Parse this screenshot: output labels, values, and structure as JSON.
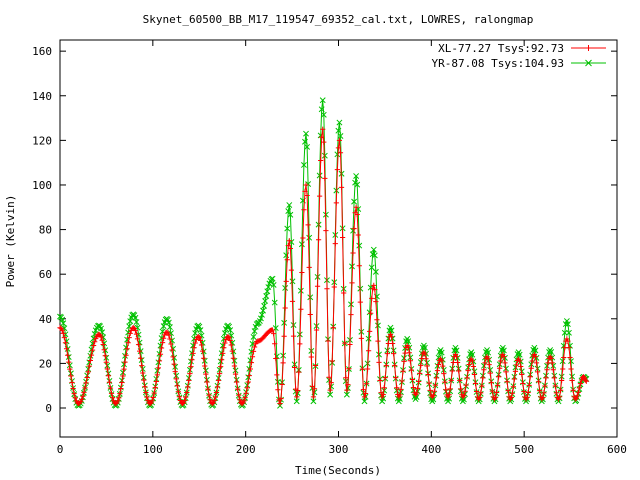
{
  "chart_data": {
    "type": "line",
    "title": "Skynet_60500_BB_M17_119547_69352_cal.txt, LOWRES, ralongmap",
    "xlabel": "Time(Seconds)",
    "ylabel": "Power (Kelvin)",
    "xlim": [
      0,
      600
    ],
    "ylim": [
      -13,
      165
    ],
    "xticks": [
      0,
      100,
      200,
      300,
      400,
      500,
      600
    ],
    "yticks": [
      0,
      20,
      40,
      60,
      80,
      100,
      120,
      140,
      160
    ],
    "grid": false,
    "legend_position": "top-right",
    "x_range": [
      0,
      567
    ],
    "series": [
      {
        "name": "XL-77.27 Tsys:92.73",
        "color": "#ff0000",
        "marker": "plus",
        "peaks": [
          {
            "t": 0,
            "v": 36
          },
          {
            "t": 20,
            "v": 2
          },
          {
            "t": 42,
            "v": 33
          },
          {
            "t": 60,
            "v": 2
          },
          {
            "t": 79,
            "v": 36
          },
          {
            "t": 97,
            "v": 2
          },
          {
            "t": 115,
            "v": 34
          },
          {
            "t": 132,
            "v": 2
          },
          {
            "t": 149,
            "v": 32
          },
          {
            "t": 164,
            "v": 2
          },
          {
            "t": 181,
            "v": 32
          },
          {
            "t": 196,
            "v": 2
          },
          {
            "t": 213,
            "v": 30
          },
          {
            "t": 229,
            "v": 35
          },
          {
            "t": 237,
            "v": 2
          },
          {
            "t": 247,
            "v": 75
          },
          {
            "t": 255,
            "v": 5
          },
          {
            "t": 265,
            "v": 100
          },
          {
            "t": 273,
            "v": 5
          },
          {
            "t": 283,
            "v": 125
          },
          {
            "t": 291,
            "v": 8
          },
          {
            "t": 301,
            "v": 120
          },
          {
            "t": 309,
            "v": 8
          },
          {
            "t": 319,
            "v": 90
          },
          {
            "t": 328,
            "v": 5
          },
          {
            "t": 338,
            "v": 55
          },
          {
            "t": 347,
            "v": 5
          },
          {
            "t": 356,
            "v": 33
          },
          {
            "t": 365,
            "v": 5
          },
          {
            "t": 374,
            "v": 28
          },
          {
            "t": 383,
            "v": 6
          },
          {
            "t": 392,
            "v": 25
          },
          {
            "t": 401,
            "v": 5
          },
          {
            "t": 410,
            "v": 22
          },
          {
            "t": 418,
            "v": 5
          },
          {
            "t": 426,
            "v": 24
          },
          {
            "t": 434,
            "v": 5
          },
          {
            "t": 443,
            "v": 22
          },
          {
            "t": 451,
            "v": 4
          },
          {
            "t": 460,
            "v": 23
          },
          {
            "t": 468,
            "v": 4
          },
          {
            "t": 477,
            "v": 24
          },
          {
            "t": 485,
            "v": 4
          },
          {
            "t": 494,
            "v": 22
          },
          {
            "t": 502,
            "v": 4
          },
          {
            "t": 511,
            "v": 24
          },
          {
            "t": 519,
            "v": 4
          },
          {
            "t": 528,
            "v": 23
          },
          {
            "t": 537,
            "v": 4
          },
          {
            "t": 546,
            "v": 31
          },
          {
            "t": 555,
            "v": 4
          },
          {
            "t": 564,
            "v": 14
          },
          {
            "t": 567,
            "v": 12
          }
        ]
      },
      {
        "name": "YR-87.08 Tsys:104.93",
        "color": "#00c000",
        "marker": "cross",
        "peaks": [
          {
            "t": 0,
            "v": 41
          },
          {
            "t": 20,
            "v": 1
          },
          {
            "t": 42,
            "v": 37
          },
          {
            "t": 60,
            "v": 1
          },
          {
            "t": 79,
            "v": 42
          },
          {
            "t": 97,
            "v": 1
          },
          {
            "t": 115,
            "v": 40
          },
          {
            "t": 132,
            "v": 1
          },
          {
            "t": 149,
            "v": 37
          },
          {
            "t": 164,
            "v": 1
          },
          {
            "t": 181,
            "v": 37
          },
          {
            "t": 196,
            "v": 1
          },
          {
            "t": 213,
            "v": 38
          },
          {
            "t": 229,
            "v": 58
          },
          {
            "t": 237,
            "v": 1
          },
          {
            "t": 247,
            "v": 91
          },
          {
            "t": 255,
            "v": 3
          },
          {
            "t": 265,
            "v": 123
          },
          {
            "t": 273,
            "v": 3
          },
          {
            "t": 283,
            "v": 138
          },
          {
            "t": 291,
            "v": 6
          },
          {
            "t": 301,
            "v": 128
          },
          {
            "t": 309,
            "v": 6
          },
          {
            "t": 319,
            "v": 104
          },
          {
            "t": 328,
            "v": 3
          },
          {
            "t": 338,
            "v": 71
          },
          {
            "t": 347,
            "v": 3
          },
          {
            "t": 356,
            "v": 36
          },
          {
            "t": 365,
            "v": 3
          },
          {
            "t": 374,
            "v": 31
          },
          {
            "t": 383,
            "v": 4
          },
          {
            "t": 392,
            "v": 28
          },
          {
            "t": 401,
            "v": 3
          },
          {
            "t": 410,
            "v": 26
          },
          {
            "t": 418,
            "v": 3
          },
          {
            "t": 426,
            "v": 27
          },
          {
            "t": 434,
            "v": 3
          },
          {
            "t": 443,
            "v": 25
          },
          {
            "t": 451,
            "v": 3
          },
          {
            "t": 460,
            "v": 26
          },
          {
            "t": 468,
            "v": 3
          },
          {
            "t": 477,
            "v": 27
          },
          {
            "t": 485,
            "v": 3
          },
          {
            "t": 494,
            "v": 25
          },
          {
            "t": 502,
            "v": 3
          },
          {
            "t": 511,
            "v": 27
          },
          {
            "t": 519,
            "v": 3
          },
          {
            "t": 528,
            "v": 26
          },
          {
            "t": 537,
            "v": 3
          },
          {
            "t": 546,
            "v": 39
          },
          {
            "t": 555,
            "v": 3
          },
          {
            "t": 564,
            "v": 14
          },
          {
            "t": 567,
            "v": 13
          }
        ]
      }
    ]
  }
}
